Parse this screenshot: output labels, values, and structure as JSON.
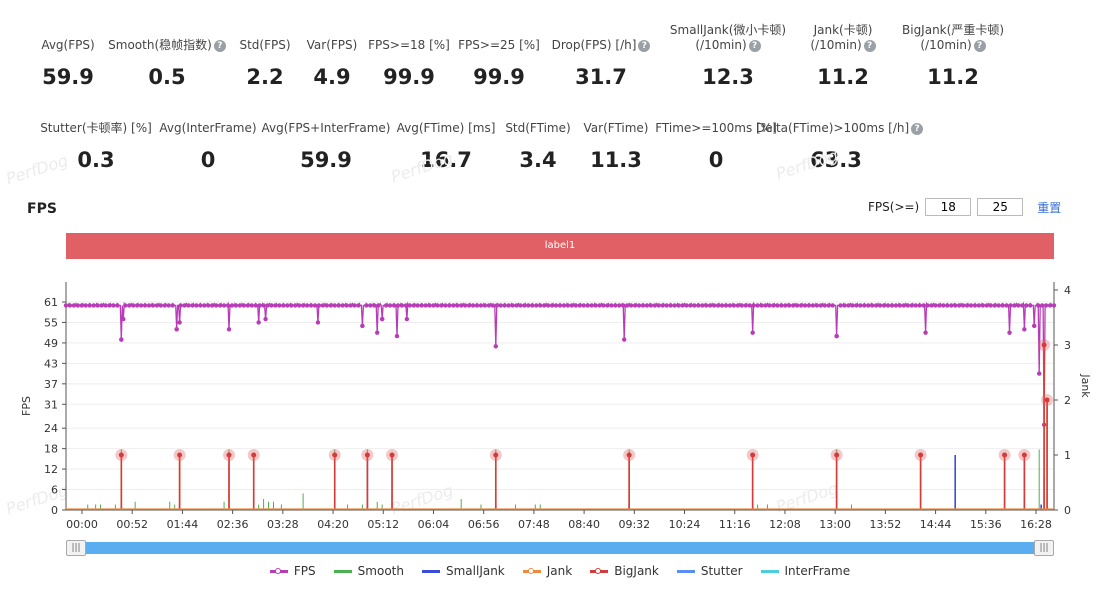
{
  "stats_row1": [
    {
      "label": "Avg(FPS)",
      "value": "59.9",
      "help": false
    },
    {
      "label": "Smooth(稳帧指数)",
      "value": "0.5",
      "help": true
    },
    {
      "label": "Std(FPS)",
      "value": "2.2",
      "help": false
    },
    {
      "label": "Var(FPS)",
      "value": "4.9",
      "help": false
    },
    {
      "label": "FPS>=18 [%]",
      "value": "99.9",
      "help": false
    },
    {
      "label": "FPS>=25 [%]",
      "value": "99.9",
      "help": false
    },
    {
      "label": "Drop(FPS) [/h]",
      "value": "31.7",
      "help": true
    },
    {
      "label": "SmallJank(微小卡顿)",
      "label2": "(/10min)",
      "value": "12.3",
      "help": true
    },
    {
      "label": "Jank(卡顿)",
      "label2": "(/10min)",
      "value": "11.2",
      "help": true
    },
    {
      "label": "BigJank(严重卡顿)",
      "label2": "(/10min)",
      "value": "11.2",
      "help": true
    }
  ],
  "stats_row2": [
    {
      "label": "Stutter(卡顿率) [%]",
      "value": "0.3",
      "help": false
    },
    {
      "label": "Avg(InterFrame)",
      "value": "0",
      "help": false
    },
    {
      "label": "Avg(FPS+InterFrame)",
      "value": "59.9",
      "help": false
    },
    {
      "label": "Avg(FTime) [ms]",
      "value": "16.7",
      "help": false
    },
    {
      "label": "Std(FTime)",
      "value": "3.4",
      "help": false
    },
    {
      "label": "Var(FTime)",
      "value": "11.3",
      "help": false
    },
    {
      "label": "FTime>=100ms [%]",
      "value": "0",
      "help": false
    },
    {
      "label": "Delta(FTime)>100ms [/h]",
      "value": "63.3",
      "help": true
    }
  ],
  "watermark": "PerfDog",
  "chart_section": {
    "title": "FPS",
    "fps_filter_label": "FPS(>=)",
    "fps_threshold_1": "18",
    "fps_threshold_2": "25",
    "reset_label": "重置",
    "label_bar": "label1"
  },
  "scrollbar": {
    "left_handle": "|||",
    "right_handle": "|||"
  },
  "colors": {
    "fps": "#b83bb8",
    "smooth": "#4caf50",
    "smalljank": "#3b4cd8",
    "jank": "#f08a3c",
    "bigjank": "#d43b3b",
    "stutter": "#5a8ef0",
    "interframe": "#4ccfdc",
    "label_bar": "#e06065"
  },
  "chart_data": {
    "type": "line",
    "title": "FPS",
    "ylabel": "FPS",
    "y2label": "Jank",
    "ylim": [
      0,
      61
    ],
    "y2lim": [
      0,
      4
    ],
    "yticks": [
      0,
      6,
      12,
      18,
      24,
      31,
      37,
      43,
      49,
      55,
      61
    ],
    "y2ticks": [
      0,
      1,
      2,
      3,
      4
    ],
    "xticks": [
      "00:00",
      "00:52",
      "01:44",
      "02:36",
      "03:28",
      "04:20",
      "05:12",
      "06:04",
      "06:56",
      "07:48",
      "08:40",
      "09:32",
      "10:24",
      "11:16",
      "12:08",
      "13:00",
      "13:52",
      "14:44",
      "15:36",
      "16:28"
    ],
    "xlim_seconds": [
      0,
      1000
    ],
    "baseline_fps": 60,
    "fps_dips": [
      [
        56,
        50
      ],
      [
        58,
        56
      ],
      [
        112,
        53
      ],
      [
        115,
        55
      ],
      [
        165,
        53
      ],
      [
        195,
        55
      ],
      [
        202,
        56
      ],
      [
        255,
        55
      ],
      [
        300,
        54
      ],
      [
        315,
        52
      ],
      [
        320,
        56
      ],
      [
        335,
        51
      ],
      [
        345,
        56
      ],
      [
        435,
        48
      ],
      [
        565,
        50
      ],
      [
        695,
        52
      ],
      [
        780,
        51
      ],
      [
        870,
        52
      ],
      [
        955,
        52
      ],
      [
        970,
        53
      ],
      [
        980,
        54
      ],
      [
        985,
        40
      ],
      [
        990,
        25
      ]
    ],
    "series": [
      {
        "name": "FPS",
        "axis": "left",
        "kind": "line-dots"
      },
      {
        "name": "Smooth",
        "axis": "right",
        "kind": "spikes",
        "points": [
          [
            22,
            0.1
          ],
          [
            30,
            0.1
          ],
          [
            35,
            0.1
          ],
          [
            50,
            0.1
          ],
          [
            56,
            1.1
          ],
          [
            70,
            0.15
          ],
          [
            105,
            0.15
          ],
          [
            110,
            0.1
          ],
          [
            115,
            0.1
          ],
          [
            160,
            0.15
          ],
          [
            165,
            1.1
          ],
          [
            195,
            0.1
          ],
          [
            200,
            0.2
          ],
          [
            205,
            0.15
          ],
          [
            210,
            0.15
          ],
          [
            218,
            0.1
          ],
          [
            240,
            0.3
          ],
          [
            272,
            1.1
          ],
          [
            285,
            0.1
          ],
          [
            300,
            0.1
          ],
          [
            305,
            1.1
          ],
          [
            315,
            0.15
          ],
          [
            320,
            0.1
          ],
          [
            330,
            0.1
          ],
          [
            400,
            0.2
          ],
          [
            420,
            0.1
          ],
          [
            435,
            1.1
          ],
          [
            455,
            0.1
          ],
          [
            475,
            0.1
          ],
          [
            480,
            0.1
          ],
          [
            570,
            1.1
          ],
          [
            700,
            0.1
          ],
          [
            710,
            0.1
          ],
          [
            780,
            1.1
          ],
          [
            795,
            0.1
          ],
          [
            985,
            1.1
          ]
        ]
      },
      {
        "name": "SmallJank",
        "axis": "right",
        "kind": "spikes",
        "points": [
          [
            305,
            1.0
          ],
          [
            900,
            1.0
          ],
          [
            987,
            0.1
          ]
        ]
      },
      {
        "name": "Jank",
        "axis": "right",
        "kind": "spikes",
        "points": [
          [
            56,
            1.0
          ],
          [
            115,
            1.0
          ],
          [
            165,
            1.0
          ],
          [
            190,
            1.0
          ],
          [
            272,
            1.0
          ],
          [
            305,
            1.0
          ],
          [
            330,
            1.0
          ],
          [
            435,
            1.0
          ],
          [
            570,
            1.0
          ],
          [
            695,
            1.0
          ],
          [
            780,
            1.0
          ],
          [
            865,
            1.0
          ],
          [
            950,
            1.0
          ],
          [
            970,
            1.0
          ],
          [
            990,
            3.0
          ],
          [
            993,
            2.0
          ]
        ]
      },
      {
        "name": "BigJank",
        "axis": "right",
        "kind": "spikes",
        "points": [
          [
            56,
            1.0
          ],
          [
            115,
            1.0
          ],
          [
            165,
            1.0
          ],
          [
            190,
            1.0
          ],
          [
            272,
            1.0
          ],
          [
            305,
            1.0
          ],
          [
            330,
            1.0
          ],
          [
            435,
            1.0
          ],
          [
            570,
            1.0
          ],
          [
            695,
            1.0
          ],
          [
            780,
            1.0
          ],
          [
            865,
            1.0
          ],
          [
            950,
            1.0
          ],
          [
            970,
            1.0
          ],
          [
            990,
            3.0
          ],
          [
            993,
            2.0
          ]
        ]
      },
      {
        "name": "Stutter",
        "axis": "right",
        "kind": "spikes",
        "points": [
          [
            56,
            0.1
          ],
          [
            115,
            0.1
          ],
          [
            305,
            0.1
          ],
          [
            435,
            0.1
          ],
          [
            570,
            0.1
          ],
          [
            990,
            0.6
          ]
        ]
      },
      {
        "name": "InterFrame",
        "axis": "right",
        "kind": "spikes",
        "points": []
      }
    ]
  }
}
